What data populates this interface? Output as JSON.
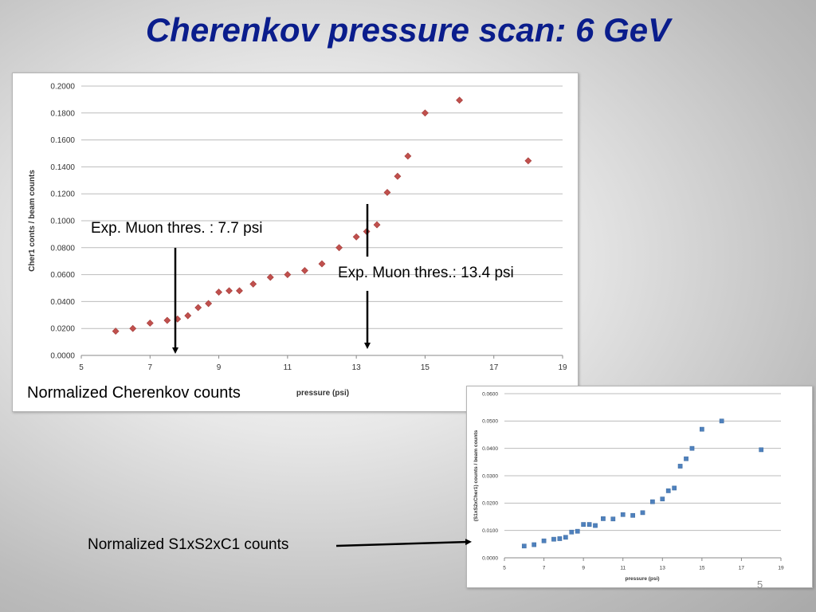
{
  "slide": {
    "title": "Cherenkov pressure scan: 6 GeV",
    "page_number": "5",
    "caption_main": "Normalized Cherenkov counts",
    "caption_secondary": "Normalized S1xS2xC1 counts",
    "annotation_low": "Exp. Muon thres. : 7.7 psi",
    "annotation_high": "Exp. Muon thres.: 13.4 psi",
    "title_color": "#0a1d8c"
  },
  "chart_data": [
    {
      "type": "scatter",
      "title": "",
      "xlabel": "pressure (psi)",
      "ylabel": "Cher1 conts / beam counts",
      "xlim": [
        5,
        19
      ],
      "ylim": [
        0,
        0.2
      ],
      "xticks": [
        "5",
        "7",
        "9",
        "11",
        "13",
        "15",
        "17",
        "19"
      ],
      "yticks": [
        "0.0000",
        "0.0200",
        "0.0400",
        "0.0600",
        "0.0800",
        "0.1000",
        "0.1200",
        "0.1400",
        "0.1600",
        "0.1800",
        "0.2000"
      ],
      "grid": "horizontal",
      "marker": "diamond",
      "color": "#c0504d",
      "x": [
        6.0,
        6.5,
        7.0,
        7.5,
        7.8,
        8.1,
        8.4,
        8.7,
        9.0,
        9.3,
        9.6,
        10.0,
        10.5,
        11.0,
        11.5,
        12.0,
        12.5,
        13.0,
        13.3,
        13.6,
        13.9,
        14.2,
        14.5,
        15.0,
        16.0,
        18.0
      ],
      "y": [
        0.018,
        0.02,
        0.024,
        0.026,
        0.027,
        0.0295,
        0.0355,
        0.0385,
        0.047,
        0.048,
        0.048,
        0.053,
        0.058,
        0.06,
        0.063,
        0.068,
        0.08,
        0.088,
        0.092,
        0.097,
        0.121,
        0.133,
        0.148,
        0.18,
        0.1895,
        0.1445
      ]
    },
    {
      "type": "scatter",
      "title": "",
      "xlabel": "pressure (psi)",
      "ylabel": "(S1xS2xCher1) counts / beam counts",
      "xlim": [
        5,
        19
      ],
      "ylim": [
        0,
        0.06
      ],
      "xticks": [
        "5",
        "7",
        "9",
        "11",
        "13",
        "15",
        "17",
        "19"
      ],
      "yticks": [
        "0.0000",
        "0.0100",
        "0.0200",
        "0.0300",
        "0.0400",
        "0.0500",
        "0.0600"
      ],
      "grid": "horizontal",
      "marker": "square",
      "color": "#4f81bd",
      "x": [
        6.0,
        6.5,
        7.0,
        7.5,
        7.8,
        8.1,
        8.4,
        8.7,
        9.0,
        9.3,
        9.6,
        10.0,
        10.5,
        11.0,
        11.5,
        12.0,
        12.5,
        13.0,
        13.3,
        13.6,
        13.9,
        14.2,
        14.5,
        15.0,
        16.0,
        18.0
      ],
      "y": [
        0.0043,
        0.0048,
        0.0062,
        0.0068,
        0.007,
        0.0075,
        0.0094,
        0.0097,
        0.0122,
        0.0122,
        0.0118,
        0.0143,
        0.0142,
        0.0158,
        0.0155,
        0.0165,
        0.0205,
        0.0215,
        0.0245,
        0.0255,
        0.0335,
        0.0362,
        0.04,
        0.047,
        0.05,
        0.0395
      ]
    }
  ]
}
